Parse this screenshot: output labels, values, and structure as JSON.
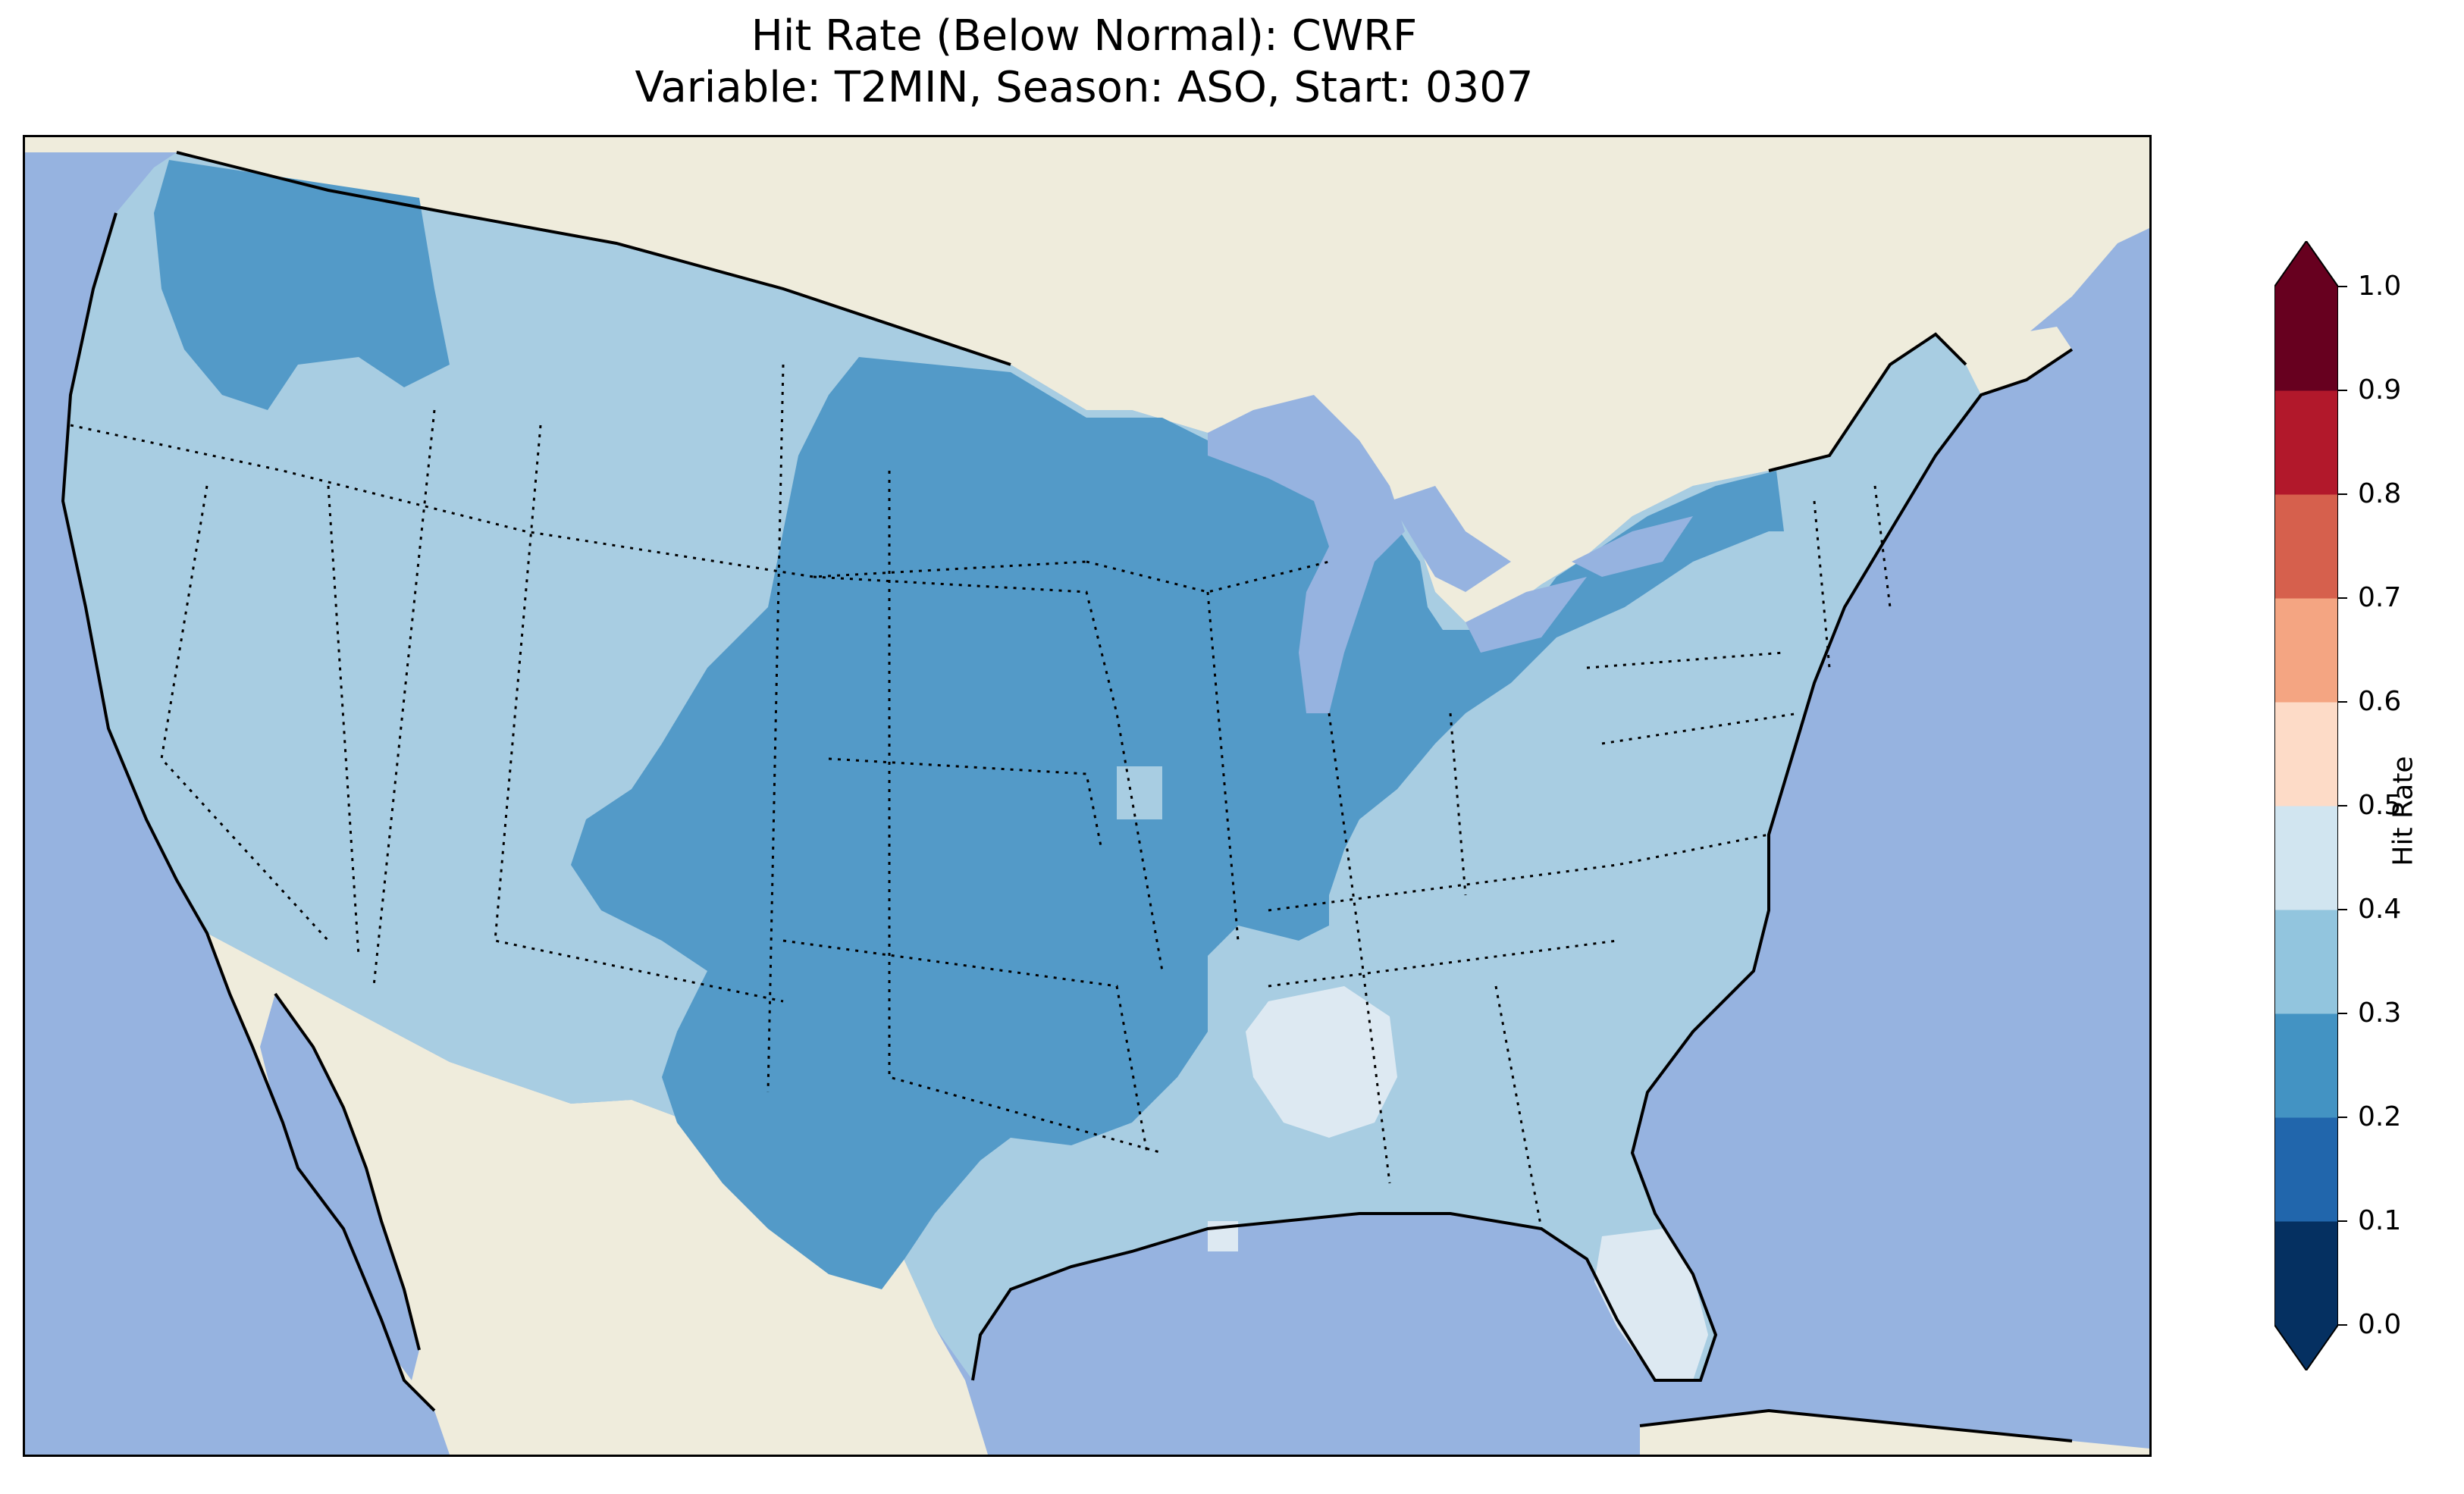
{
  "title_line1": "Hit Rate (Below Normal): CWRF",
  "title_line2": "Variable: T2MIN, Season: ASO, Start: 0307",
  "colorbar": {
    "label": "Hit Rate",
    "ticks": [
      "0.0",
      "0.1",
      "0.2",
      "0.3",
      "0.4",
      "0.5",
      "0.6",
      "0.7",
      "0.8",
      "0.9",
      "1.0"
    ],
    "colors": [
      "#053061",
      "#2166ac",
      "#4393c3",
      "#92c5de",
      "#d1e5f0",
      "#fddbc7",
      "#f4a582",
      "#d6604d",
      "#b2182b",
      "#67001f"
    ],
    "extend_low_color": "#053061",
    "extend_high_color": "#67001f"
  },
  "map": {
    "ocean_color": "#96b3e0",
    "land_color": "#efecdc",
    "region_values": [
      {
        "region": "Most of the contiguous US (west, east, south)",
        "bin": "0.3-0.4",
        "color": "#a8cde2"
      },
      {
        "region": "Central Plains, Midwest, Great Lakes, Texas interior, Washington",
        "bin": "0.2-0.3",
        "color": "#539ac8"
      },
      {
        "region": "Central Alabama/Mississippi, South Florida, coastal Louisiana",
        "bin": "0.4-0.5",
        "color": "#dde9f2"
      }
    ]
  }
}
